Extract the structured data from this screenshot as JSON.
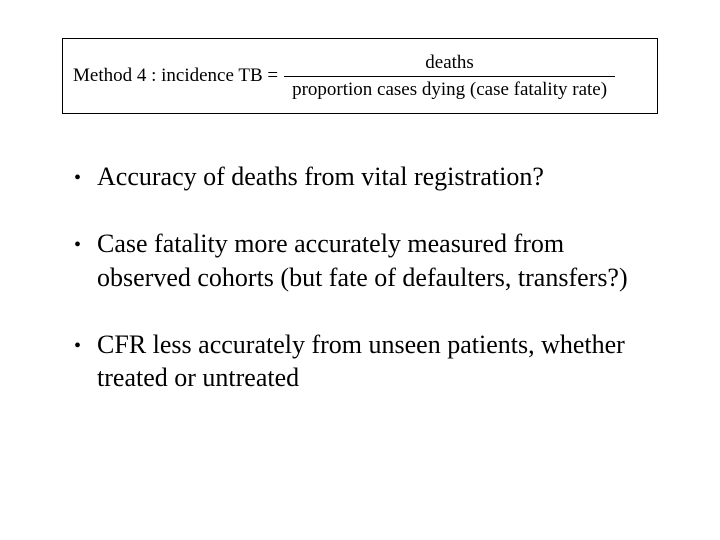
{
  "formula": {
    "label": "Method 4 : incidence TB =",
    "numerator": "deaths",
    "denominator": "proportion cases dying (case fatality rate)"
  },
  "bullets": [
    "Accuracy of deaths from vital registration?",
    "Case fatality more accurately measured from observed cohorts (but fate of defaulters, transfers?)",
    "CFR less accurately from unseen patients, whether treated or untreated"
  ],
  "colors": {
    "background": "#ffffff",
    "text": "#000000",
    "border": "#000000"
  }
}
